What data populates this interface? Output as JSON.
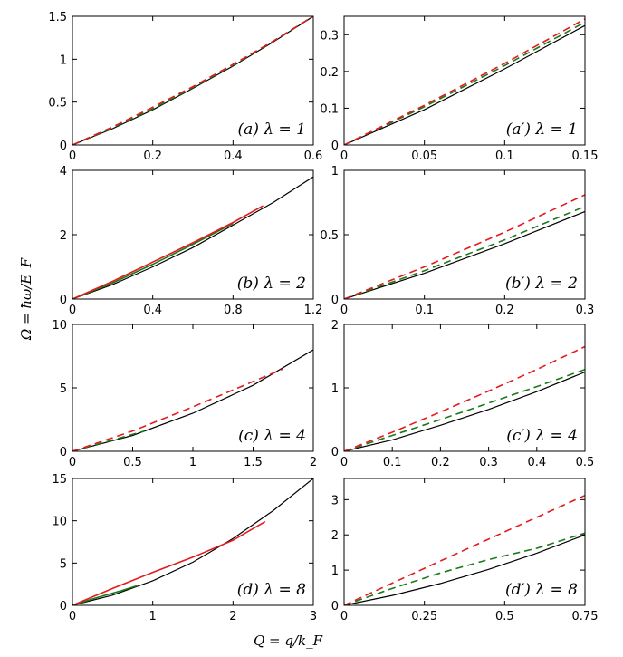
{
  "figure": {
    "xlabel": "Q = q/k_F",
    "ylabel": "Ω = ħω/E_F"
  },
  "chart_data": [
    {
      "type": "line",
      "panel_label": "(a) λ = 1",
      "xlim": [
        0,
        0.6
      ],
      "ylim": [
        0,
        1.5
      ],
      "xticks": [
        "0",
        "0.2",
        "0.4",
        "0.6"
      ],
      "xtick_values": [
        0,
        0.2,
        0.4,
        0.6
      ],
      "yticks": [
        "0",
        "0.5",
        "1",
        "1.5"
      ],
      "ytick_values": [
        0,
        0.5,
        1,
        1.5
      ],
      "series": [
        {
          "name": "black-solid",
          "color": "#000000",
          "dash": "",
          "width": 1.2,
          "x": [
            0,
            0.1,
            0.2,
            0.3,
            0.4,
            0.5,
            0.6
          ],
          "y": [
            0,
            0.19,
            0.41,
            0.66,
            0.92,
            1.2,
            1.5
          ]
        },
        {
          "name": "green-dashed",
          "color": "#1a7a1a",
          "dash": "8,5",
          "width": 1.6,
          "x": [
            0,
            0.1,
            0.2,
            0.3,
            0.4,
            0.5,
            0.6
          ],
          "y": [
            0,
            0.2,
            0.42,
            0.67,
            0.93,
            1.21,
            1.5
          ]
        },
        {
          "name": "red-dashed",
          "color": "#e41a1c",
          "dash": "8,5",
          "width": 1.6,
          "x": [
            0,
            0.1,
            0.2,
            0.3,
            0.4,
            0.5,
            0.6
          ],
          "y": [
            0,
            0.21,
            0.44,
            0.68,
            0.94,
            1.21,
            1.5
          ]
        }
      ]
    },
    {
      "type": "line",
      "panel_label": "(a′) λ = 1",
      "xlim": [
        0,
        0.15
      ],
      "ylim": [
        0,
        0.35
      ],
      "xticks": [
        "0",
        "0.05",
        "0.1",
        "0.15"
      ],
      "xtick_values": [
        0,
        0.05,
        0.1,
        0.15
      ],
      "yticks": [
        "0",
        "0.1",
        "0.2",
        "0.3"
      ],
      "ytick_values": [
        0,
        0.1,
        0.2,
        0.3
      ],
      "series": [
        {
          "name": "black-solid",
          "color": "#000000",
          "dash": "",
          "width": 1.2,
          "x": [
            0,
            0.05,
            0.1,
            0.15
          ],
          "y": [
            0,
            0.096,
            0.207,
            0.325
          ]
        },
        {
          "name": "green-dashed",
          "color": "#1a7a1a",
          "dash": "8,5",
          "width": 1.6,
          "x": [
            0,
            0.05,
            0.1,
            0.15
          ],
          "y": [
            0,
            0.104,
            0.216,
            0.334
          ]
        },
        {
          "name": "red-dashed",
          "color": "#e41a1c",
          "dash": "8,5",
          "width": 1.6,
          "x": [
            0,
            0.05,
            0.1,
            0.15
          ],
          "y": [
            0,
            0.108,
            0.222,
            0.343
          ]
        }
      ]
    },
    {
      "type": "line",
      "panel_label": "(b) λ = 2",
      "xlim": [
        0,
        1.2
      ],
      "ylim": [
        0,
        4
      ],
      "xticks": [
        "0",
        "0.4",
        "0.8",
        "1.2"
      ],
      "xtick_values": [
        0,
        0.4,
        0.8,
        1.2
      ],
      "yticks": [
        "0",
        "2",
        "4"
      ],
      "ytick_values": [
        0,
        2,
        4
      ],
      "series": [
        {
          "name": "black-solid",
          "color": "#000000",
          "dash": "",
          "width": 1.2,
          "x": [
            0,
            0.2,
            0.4,
            0.6,
            0.8,
            1.0,
            1.2
          ],
          "y": [
            0,
            0.45,
            1.0,
            1.6,
            2.3,
            3.0,
            3.8
          ]
        },
        {
          "name": "green-solid",
          "color": "#1a7a1a",
          "dash": "",
          "width": 1.6,
          "x": [
            0,
            0.2,
            0.4,
            0.6,
            0.8
          ],
          "y": [
            0,
            0.5,
            1.08,
            1.7,
            2.35
          ]
        },
        {
          "name": "red-solid",
          "color": "#e41a1c",
          "dash": "",
          "width": 1.6,
          "x": [
            0,
            0.2,
            0.4,
            0.6,
            0.8,
            0.95
          ],
          "y": [
            0,
            0.55,
            1.15,
            1.75,
            2.38,
            2.9
          ]
        }
      ]
    },
    {
      "type": "line",
      "panel_label": "(b′) λ = 2",
      "xlim": [
        0,
        0.3
      ],
      "ylim": [
        0,
        1
      ],
      "xticks": [
        "0",
        "0.1",
        "0.2",
        "0.3"
      ],
      "xtick_values": [
        0,
        0.1,
        0.2,
        0.3
      ],
      "yticks": [
        "0",
        "0.5",
        "1"
      ],
      "ytick_values": [
        0,
        0.5,
        1
      ],
      "series": [
        {
          "name": "black-solid",
          "color": "#000000",
          "dash": "",
          "width": 1.2,
          "x": [
            0,
            0.1,
            0.2,
            0.3
          ],
          "y": [
            0,
            0.2,
            0.43,
            0.68
          ]
        },
        {
          "name": "green-dashed",
          "color": "#1a7a1a",
          "dash": "8,5",
          "width": 1.6,
          "x": [
            0,
            0.1,
            0.2,
            0.3
          ],
          "y": [
            0,
            0.22,
            0.46,
            0.72
          ]
        },
        {
          "name": "red-dashed",
          "color": "#e41a1c",
          "dash": "8,5",
          "width": 1.6,
          "x": [
            0,
            0.1,
            0.2,
            0.3
          ],
          "y": [
            0,
            0.25,
            0.52,
            0.81
          ]
        }
      ]
    },
    {
      "type": "line",
      "panel_label": "(c) λ = 4",
      "xlim": [
        0,
        2
      ],
      "ylim": [
        0,
        10
      ],
      "xticks": [
        "0",
        "0.5",
        "1",
        "1.5",
        "2"
      ],
      "xtick_values": [
        0,
        0.5,
        1,
        1.5,
        2
      ],
      "yticks": [
        "0",
        "5",
        "10"
      ],
      "ytick_values": [
        0,
        5,
        10
      ],
      "series": [
        {
          "name": "black-solid",
          "color": "#000000",
          "dash": "",
          "width": 1.2,
          "x": [
            0,
            0.5,
            1.0,
            1.5,
            2.0
          ],
          "y": [
            0,
            1.25,
            3.0,
            5.2,
            8.0
          ]
        },
        {
          "name": "green-dashed",
          "color": "#1a7a1a",
          "dash": "8,5",
          "width": 1.6,
          "x": [
            0,
            0.3,
            0.6
          ],
          "y": [
            0,
            0.8,
            1.6
          ]
        },
        {
          "name": "red-dashed",
          "color": "#e41a1c",
          "dash": "8,5",
          "width": 1.6,
          "x": [
            0,
            0.5,
            1.0,
            1.5,
            1.75
          ],
          "y": [
            0,
            1.6,
            3.5,
            5.5,
            6.5
          ]
        }
      ]
    },
    {
      "type": "line",
      "panel_label": "(c′) λ = 4",
      "xlim": [
        0,
        0.5
      ],
      "ylim": [
        0,
        2
      ],
      "xticks": [
        "0",
        "0.1",
        "0.2",
        "0.3",
        "0.4",
        "0.5"
      ],
      "xtick_values": [
        0,
        0.1,
        0.2,
        0.3,
        0.4,
        0.5
      ],
      "yticks": [
        "0",
        "1",
        "2"
      ],
      "ytick_values": [
        0,
        1,
        2
      ],
      "series": [
        {
          "name": "black-solid",
          "color": "#000000",
          "dash": "",
          "width": 1.2,
          "x": [
            0,
            0.1,
            0.2,
            0.3,
            0.4,
            0.5
          ],
          "y": [
            0,
            0.18,
            0.41,
            0.66,
            0.94,
            1.25
          ]
        },
        {
          "name": "green-dashed",
          "color": "#1a7a1a",
          "dash": "8,5",
          "width": 1.6,
          "x": [
            0,
            0.1,
            0.2,
            0.3,
            0.4,
            0.5
          ],
          "y": [
            0,
            0.25,
            0.5,
            0.76,
            1.02,
            1.29
          ]
        },
        {
          "name": "red-dashed",
          "color": "#e41a1c",
          "dash": "8,5",
          "width": 1.6,
          "x": [
            0,
            0.1,
            0.2,
            0.3,
            0.4,
            0.5
          ],
          "y": [
            0,
            0.3,
            0.62,
            0.95,
            1.29,
            1.65
          ]
        }
      ]
    },
    {
      "type": "line",
      "panel_label": "(d) λ = 8",
      "xlim": [
        0,
        3
      ],
      "ylim": [
        0,
        15
      ],
      "xticks": [
        "0",
        "1",
        "2",
        "3"
      ],
      "xtick_values": [
        0,
        1,
        2,
        3
      ],
      "yticks": [
        "0",
        "5",
        "10",
        "15"
      ],
      "ytick_values": [
        0,
        5,
        10,
        15
      ],
      "series": [
        {
          "name": "black-solid",
          "color": "#000000",
          "dash": "",
          "width": 1.2,
          "x": [
            0,
            0.5,
            1.0,
            1.5,
            2.0,
            2.5,
            3.0
          ],
          "y": [
            0,
            1.2,
            2.9,
            5.1,
            7.9,
            11.2,
            15.0
          ]
        },
        {
          "name": "green-solid",
          "color": "#1a7a1a",
          "dash": "",
          "width": 1.6,
          "x": [
            0,
            0.3,
            0.6,
            0.8
          ],
          "y": [
            0,
            0.9,
            1.7,
            2.3
          ]
        },
        {
          "name": "red-solid",
          "color": "#e41a1c",
          "dash": "",
          "width": 1.6,
          "x": [
            0,
            0.5,
            1.0,
            1.5,
            2.0,
            2.4
          ],
          "y": [
            0,
            2.0,
            3.9,
            5.7,
            7.7,
            9.9
          ]
        }
      ]
    },
    {
      "type": "line",
      "panel_label": "(d′) λ = 8",
      "xlim": [
        0,
        0.75
      ],
      "ylim": [
        0,
        3.6
      ],
      "xticks": [
        "0",
        "0.25",
        "0.5",
        "0.75"
      ],
      "xtick_values": [
        0,
        0.25,
        0.5,
        0.75
      ],
      "yticks": [
        "0",
        "1",
        "2",
        "3"
      ],
      "ytick_values": [
        0,
        1,
        2,
        3
      ],
      "series": [
        {
          "name": "black-solid",
          "color": "#000000",
          "dash": "",
          "width": 1.2,
          "x": [
            0,
            0.15,
            0.3,
            0.45,
            0.6,
            0.75
          ],
          "y": [
            0,
            0.28,
            0.62,
            1.02,
            1.48,
            2.0
          ]
        },
        {
          "name": "green-dashed",
          "color": "#1a7a1a",
          "dash": "8,5",
          "width": 1.6,
          "x": [
            0,
            0.15,
            0.3,
            0.45,
            0.6,
            0.75
          ],
          "y": [
            0,
            0.48,
            0.92,
            1.3,
            1.62,
            2.05
          ]
        },
        {
          "name": "red-dashed",
          "color": "#e41a1c",
          "dash": "8,5",
          "width": 1.6,
          "x": [
            0,
            0.15,
            0.3,
            0.45,
            0.6,
            0.75
          ],
          "y": [
            0,
            0.63,
            1.26,
            1.88,
            2.5,
            3.12
          ]
        }
      ]
    }
  ]
}
